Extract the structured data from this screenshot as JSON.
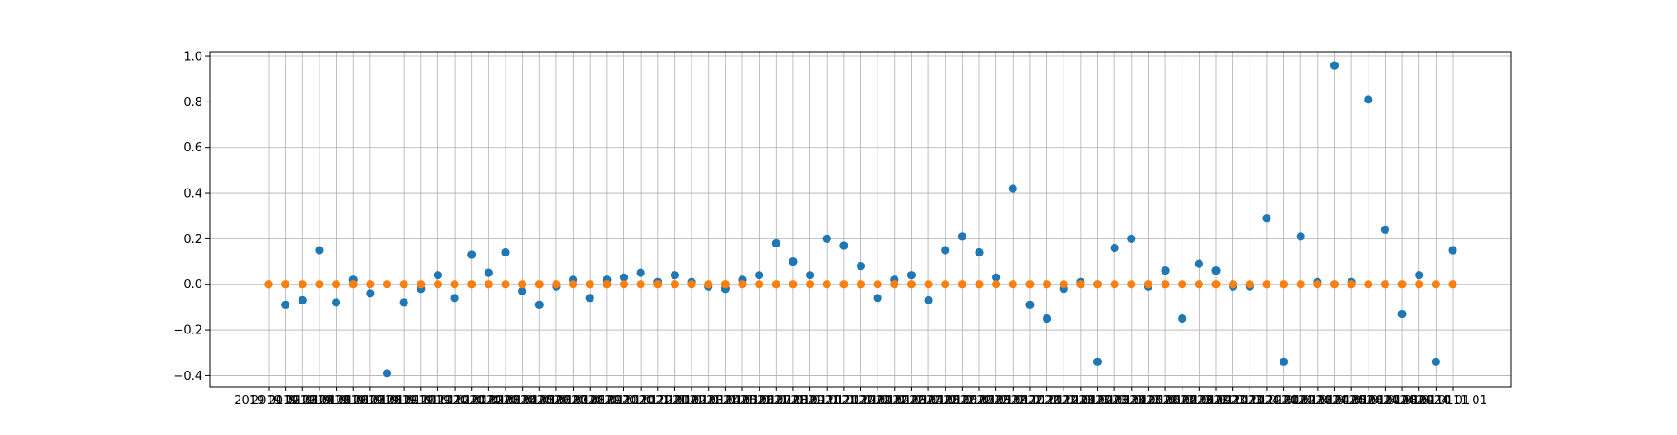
{
  "chart_data": {
    "type": "scatter",
    "title": "",
    "xlabel": "",
    "ylabel": "",
    "grid": true,
    "ylim": [
      -0.45,
      1.02
    ],
    "y_ticks": [
      -0.4,
      -0.2,
      0.0,
      0.2,
      0.4,
      0.6,
      0.8,
      1.0
    ],
    "x_tick_labels_note": "71 overlapping date tick labels; legible text: 2019-01-01 (first) ... 2024-11-01 (last)",
    "x_tick_labels": [
      "2019-01-01",
      "2024-11-01"
    ],
    "x": [
      "2019-01-01",
      "2019-02-01",
      "2019-03-01",
      "2019-04-01",
      "2019-05-01",
      "2019-06-01",
      "2019-07-01",
      "2019-08-01",
      "2019-09-01",
      "2019-10-01",
      "2019-11-01",
      "2019-12-01",
      "2020-01-01",
      "2020-02-01",
      "2020-03-01",
      "2020-04-01",
      "2020-05-01",
      "2020-06-01",
      "2020-07-01",
      "2020-08-01",
      "2020-09-01",
      "2020-10-01",
      "2020-11-01",
      "2020-12-01",
      "2021-01-01",
      "2021-02-01",
      "2021-03-01",
      "2021-04-01",
      "2021-05-01",
      "2021-06-01",
      "2021-07-01",
      "2021-08-01",
      "2021-09-01",
      "2021-10-01",
      "2021-11-01",
      "2021-12-01",
      "2022-01-01",
      "2022-02-01",
      "2022-03-01",
      "2022-04-01",
      "2022-05-01",
      "2022-06-01",
      "2022-07-01",
      "2022-08-01",
      "2022-09-01",
      "2022-10-01",
      "2022-11-01",
      "2022-12-01",
      "2023-01-01",
      "2023-02-01",
      "2023-03-01",
      "2023-04-01",
      "2023-05-01",
      "2023-06-01",
      "2023-07-01",
      "2023-08-01",
      "2023-09-01",
      "2023-10-01",
      "2023-11-01",
      "2023-12-01",
      "2024-01-01",
      "2024-02-01",
      "2024-03-01",
      "2024-04-01",
      "2024-05-01",
      "2024-06-01",
      "2024-07-01",
      "2024-08-01",
      "2024-09-01",
      "2024-10-01",
      "2024-11-01"
    ],
    "series": [
      {
        "color": "#1f77b4",
        "values": [
          0.0,
          -0.09,
          -0.07,
          0.15,
          -0.08,
          0.02,
          -0.04,
          -0.39,
          -0.08,
          -0.02,
          0.04,
          -0.06,
          0.13,
          0.05,
          0.14,
          -0.03,
          -0.09,
          -0.01,
          0.02,
          -0.06,
          0.02,
          0.03,
          0.05,
          0.01,
          0.04,
          0.01,
          -0.01,
          -0.02,
          0.02,
          0.04,
          0.18,
          0.1,
          0.04,
          0.2,
          0.17,
          0.08,
          -0.06,
          0.02,
          0.04,
          -0.07,
          0.15,
          0.21,
          0.14,
          0.03,
          0.42,
          -0.09,
          -0.15,
          -0.02,
          0.01,
          -0.34,
          0.16,
          0.2,
          -0.01,
          0.06,
          -0.15,
          0.09,
          0.06,
          -0.01,
          -0.01,
          0.29,
          -0.34,
          0.21,
          0.01,
          0.96,
          0.01,
          0.81,
          0.24,
          -0.13,
          0.04,
          -0.34,
          0.15
        ]
      },
      {
        "color": "#ff7f0e",
        "values": [
          0,
          0,
          0,
          0,
          0,
          0,
          0,
          0,
          0,
          0,
          0,
          0,
          0,
          0,
          0,
          0,
          0,
          0,
          0,
          0,
          0,
          0,
          0,
          0,
          0,
          0,
          0,
          0,
          0,
          0,
          0,
          0,
          0,
          0,
          0,
          0,
          0,
          0,
          0,
          0,
          0,
          0,
          0,
          0,
          0,
          0,
          0,
          0,
          0,
          0,
          0,
          0,
          0,
          0,
          0,
          0,
          0,
          0,
          0,
          0,
          0,
          0,
          0,
          0,
          0,
          0,
          0,
          0,
          0,
          0,
          0
        ]
      }
    ]
  }
}
